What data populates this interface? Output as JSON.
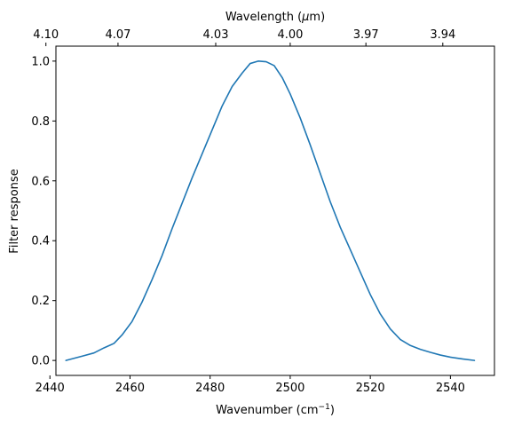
{
  "chart_data": {
    "type": "line",
    "xlabel": "Wavenumber (cm",
    "xlabel_sup": "−1",
    "xlabel_close": ")",
    "top_xlabel": "Wavelength (",
    "top_xlabel_mu": "μ",
    "top_xlabel_close": "m)",
    "ylabel": "Filter response",
    "xlim": [
      2441.5,
      2551
    ],
    "ylim": [
      -0.05,
      1.05
    ],
    "x_ticks": [
      2440,
      2460,
      2480,
      2500,
      2520,
      2540
    ],
    "x_tick_labels": [
      "2440",
      "2460",
      "2480",
      "2500",
      "2520",
      "2540"
    ],
    "y_ticks": [
      0.0,
      0.2,
      0.4,
      0.6,
      0.8,
      1.0
    ],
    "y_tick_labels": [
      "0.0",
      "0.2",
      "0.4",
      "0.6",
      "0.8",
      "1.0"
    ],
    "top_ticks_wavenumber": [
      2439.0,
      2457.0,
      2481.4,
      2500.0,
      2518.9,
      2538.1
    ],
    "top_tick_labels": [
      "4.10",
      "4.07",
      "4.03",
      "4.00",
      "3.97",
      "3.94"
    ],
    "grid": false,
    "line_color": "#1f77b4",
    "series": [
      {
        "x": [
          2444,
          2446,
          2448,
          2451,
          2453.5,
          2456,
          2458,
          2460.5,
          2463,
          2465.5,
          2468,
          2470.5,
          2473,
          2475.5,
          2478,
          2480.5,
          2483,
          2485.5,
          2488,
          2490,
          2492,
          2494,
          2496,
          2498,
          2500,
          2502.5,
          2505,
          2507.5,
          2510,
          2512.5,
          2515,
          2517.5,
          2520,
          2522.5,
          2525,
          2527.5,
          2530,
          2532.5,
          2535,
          2537.5,
          2540,
          2543,
          2546
        ],
        "y": [
          0.0,
          0.007,
          0.014,
          0.025,
          0.042,
          0.057,
          0.085,
          0.13,
          0.195,
          0.27,
          0.35,
          0.44,
          0.525,
          0.61,
          0.69,
          0.77,
          0.85,
          0.915,
          0.96,
          0.992,
          1.0,
          0.998,
          0.985,
          0.945,
          0.89,
          0.81,
          0.72,
          0.625,
          0.53,
          0.445,
          0.37,
          0.295,
          0.22,
          0.155,
          0.105,
          0.07,
          0.05,
          0.037,
          0.027,
          0.018,
          0.011,
          0.005,
          0.0
        ]
      }
    ]
  }
}
